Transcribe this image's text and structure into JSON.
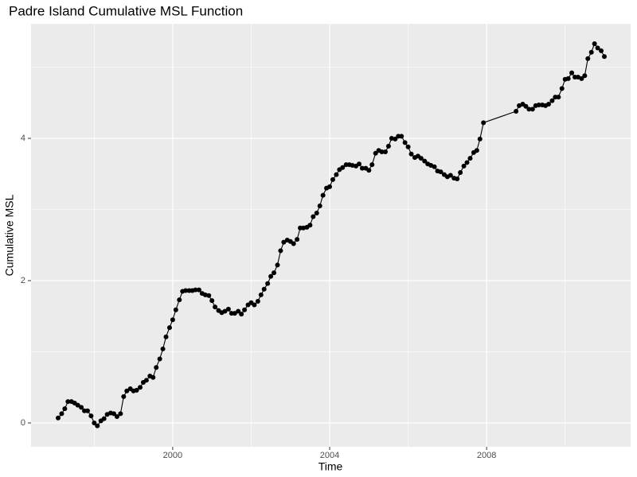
{
  "chart_data": {
    "type": "line",
    "title": "Padre Island Cumulative MSL Function",
    "x_label": "Time",
    "y_label": "Cumulative MSL",
    "color": "#000000",
    "grid": true,
    "xlim": [
      1996.39,
      2011.67
    ],
    "ylim": [
      -0.335,
      5.609
    ],
    "xticks": [
      2000,
      2004,
      2008
    ],
    "yticks": [
      0,
      2,
      4
    ],
    "x": [
      1997.08,
      1997.17,
      1997.25,
      1997.33,
      1997.42,
      1997.5,
      1997.58,
      1997.67,
      1997.75,
      1997.83,
      1997.92,
      1998.0,
      1998.08,
      1998.17,
      1998.25,
      1998.33,
      1998.42,
      1998.5,
      1998.58,
      1998.67,
      1998.75,
      1998.83,
      1998.92,
      1999.0,
      1999.08,
      1999.17,
      1999.25,
      1999.33,
      1999.42,
      1999.5,
      1999.58,
      1999.67,
      1999.75,
      1999.83,
      1999.92,
      2000.0,
      2000.08,
      2000.17,
      2000.25,
      2000.33,
      2000.42,
      2000.5,
      2000.58,
      2000.67,
      2000.75,
      2000.83,
      2000.92,
      2001.0,
      2001.08,
      2001.17,
      2001.25,
      2001.33,
      2001.42,
      2001.5,
      2001.58,
      2001.67,
      2001.75,
      2001.83,
      2001.92,
      2002.0,
      2002.08,
      2002.17,
      2002.25,
      2002.33,
      2002.42,
      2002.5,
      2002.58,
      2002.67,
      2002.75,
      2002.83,
      2002.92,
      2003.0,
      2003.08,
      2003.17,
      2003.25,
      2003.33,
      2003.42,
      2003.5,
      2003.58,
      2003.67,
      2003.75,
      2003.83,
      2003.92,
      2004.0,
      2004.08,
      2004.17,
      2004.25,
      2004.33,
      2004.42,
      2004.5,
      2004.58,
      2004.67,
      2004.75,
      2004.83,
      2004.92,
      2005.0,
      2005.08,
      2005.17,
      2005.25,
      2005.33,
      2005.42,
      2005.5,
      2005.58,
      2005.67,
      2005.75,
      2005.83,
      2005.92,
      2006.0,
      2006.08,
      2006.17,
      2006.25,
      2006.33,
      2006.42,
      2006.5,
      2006.58,
      2006.67,
      2006.75,
      2006.83,
      2006.92,
      2007.0,
      2007.08,
      2007.17,
      2007.25,
      2007.33,
      2007.42,
      2007.5,
      2007.58,
      2007.67,
      2007.75,
      2007.83,
      2007.92,
      2008.75,
      2008.83,
      2008.92,
      2009.0,
      2009.08,
      2009.17,
      2009.25,
      2009.33,
      2009.42,
      2009.5,
      2009.58,
      2009.67,
      2009.75,
      2009.83,
      2009.92,
      2010.0,
      2010.08,
      2010.17,
      2010.25,
      2010.33,
      2010.42,
      2010.5,
      2010.58,
      2010.67,
      2010.75,
      2010.83,
      2010.92,
      2011.0
    ],
    "values": [
      0.07,
      0.13,
      0.2,
      0.3,
      0.3,
      0.28,
      0.25,
      0.22,
      0.17,
      0.17,
      0.1,
      0.0,
      -0.04,
      0.03,
      0.06,
      0.12,
      0.14,
      0.13,
      0.09,
      0.13,
      0.37,
      0.45,
      0.48,
      0.45,
      0.46,
      0.5,
      0.57,
      0.6,
      0.66,
      0.64,
      0.78,
      0.9,
      1.04,
      1.21,
      1.34,
      1.45,
      1.59,
      1.73,
      1.85,
      1.86,
      1.86,
      1.86,
      1.87,
      1.87,
      1.82,
      1.8,
      1.79,
      1.72,
      1.63,
      1.58,
      1.55,
      1.57,
      1.6,
      1.54,
      1.54,
      1.57,
      1.53,
      1.59,
      1.66,
      1.69,
      1.66,
      1.71,
      1.8,
      1.88,
      1.96,
      2.06,
      2.11,
      2.22,
      2.42,
      2.54,
      2.57,
      2.55,
      2.52,
      2.58,
      2.74,
      2.74,
      2.75,
      2.78,
      2.9,
      2.95,
      3.05,
      3.2,
      3.3,
      3.32,
      3.42,
      3.49,
      3.56,
      3.59,
      3.63,
      3.63,
      3.62,
      3.61,
      3.64,
      3.58,
      3.58,
      3.55,
      3.63,
      3.79,
      3.83,
      3.81,
      3.81,
      3.89,
      4.0,
      3.99,
      4.03,
      4.03,
      3.94,
      3.88,
      3.78,
      3.73,
      3.75,
      3.72,
      3.68,
      3.64,
      3.62,
      3.6,
      3.54,
      3.53,
      3.49,
      3.46,
      3.48,
      3.44,
      3.43,
      3.52,
      3.61,
      3.66,
      3.72,
      3.8,
      3.83,
      3.99,
      4.22,
      4.38,
      4.46,
      4.48,
      4.45,
      4.41,
      4.41,
      4.46,
      4.47,
      4.47,
      4.46,
      4.48,
      4.53,
      4.58,
      4.58,
      4.7,
      4.83,
      4.84,
      4.92,
      4.86,
      4.86,
      4.84,
      4.88,
      5.12,
      5.21,
      5.33,
      5.27,
      5.23,
      5.15
    ]
  }
}
